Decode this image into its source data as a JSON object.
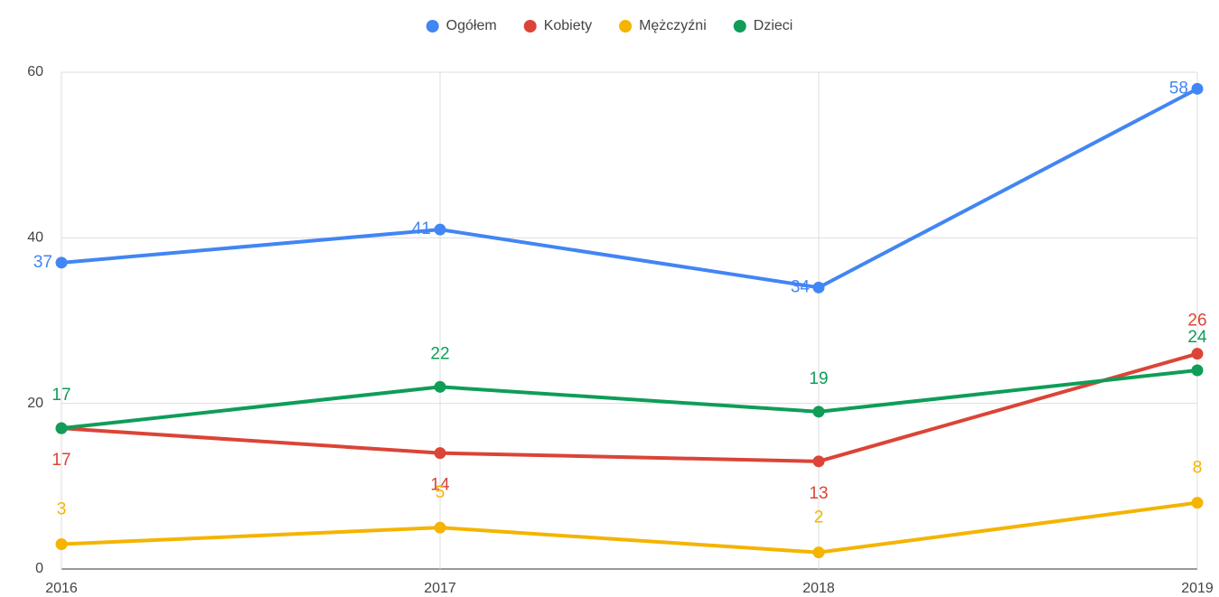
{
  "chart_data": {
    "type": "line",
    "categories": [
      "2016",
      "2017",
      "2018",
      "2019"
    ],
    "series": [
      {
        "name": "Ogółem",
        "color": "#4285f4",
        "values": [
          37,
          41,
          34,
          58
        ]
      },
      {
        "name": "Kobiety",
        "color": "#db4437",
        "values": [
          17,
          14,
          13,
          26
        ]
      },
      {
        "name": "Mężczyźni",
        "color": "#f4b400",
        "values": [
          3,
          5,
          2,
          8
        ]
      },
      {
        "name": "Dzieci",
        "color": "#0f9d58",
        "values": [
          17,
          22,
          19,
          24
        ]
      }
    ],
    "ylim": [
      0,
      60
    ],
    "yticks": [
      0,
      20,
      40,
      60
    ],
    "grid": true,
    "legend": "top"
  }
}
